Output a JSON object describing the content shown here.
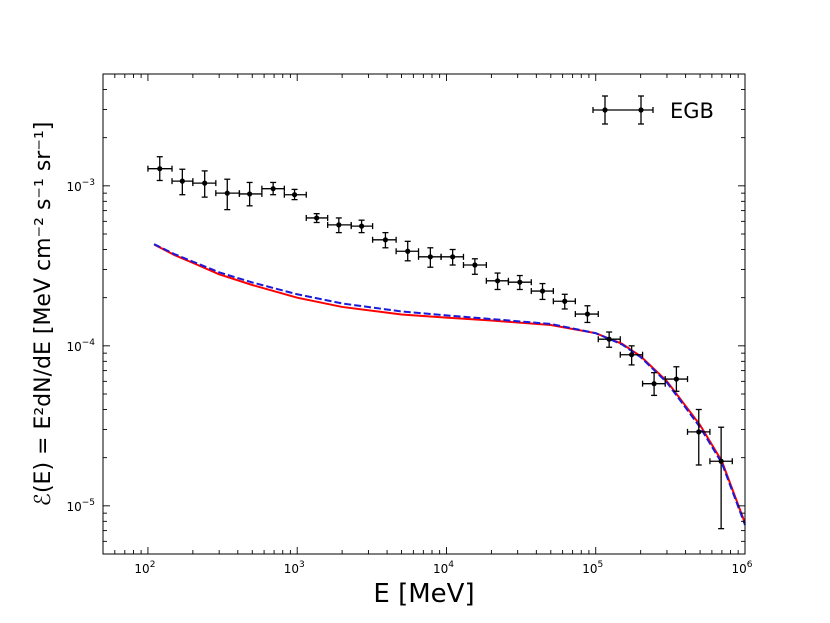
{
  "chart_data": {
    "type": "scatter",
    "title": "",
    "xlabel": "E [MeV]",
    "ylabel": "ℰ(E) = E²dN/dE [MeV cm⁻² s⁻¹ sr⁻¹]",
    "xscale": "log",
    "yscale": "log",
    "xlim": [
      50,
      1000000
    ],
    "ylim": [
      5e-06,
      0.005
    ],
    "grid": false,
    "legend_position": "top-right",
    "x_ticks": [
      {
        "value": 100,
        "base": "10",
        "exp": "2"
      },
      {
        "value": 1000,
        "base": "10",
        "exp": "3"
      },
      {
        "value": 10000,
        "base": "10",
        "exp": "4"
      },
      {
        "value": 100000,
        "base": "10",
        "exp": "5"
      },
      {
        "value": 1000000,
        "base": "10",
        "exp": "6"
      }
    ],
    "y_ticks": [
      {
        "value": 1e-05,
        "base": "10",
        "exp": "−5"
      },
      {
        "value": 0.0001,
        "base": "10",
        "exp": "−4"
      },
      {
        "value": 0.001,
        "base": "10",
        "exp": "−3"
      }
    ],
    "series": [
      {
        "name": "EGB",
        "kind": "errorbar",
        "color": "#000000",
        "points": [
          {
            "x": 120,
            "y": 0.00128,
            "xlo": 100,
            "xhi": 145,
            "ylo": 0.00108,
            "yhi": 0.00152
          },
          {
            "x": 170,
            "y": 0.00107,
            "xlo": 145,
            "xhi": 200,
            "ylo": 0.00088,
            "yhi": 0.00127
          },
          {
            "x": 240,
            "y": 0.00104,
            "xlo": 200,
            "xhi": 285,
            "ylo": 0.00085,
            "yhi": 0.00124
          },
          {
            "x": 340,
            "y": 0.0009,
            "xlo": 285,
            "xhi": 410,
            "ylo": 0.00071,
            "yhi": 0.0011
          },
          {
            "x": 480,
            "y": 0.00089,
            "xlo": 410,
            "xhi": 580,
            "ylo": 0.00075,
            "yhi": 0.00105
          },
          {
            "x": 690,
            "y": 0.00096,
            "xlo": 580,
            "xhi": 820,
            "ylo": 0.00088,
            "yhi": 0.00105
          },
          {
            "x": 960,
            "y": 0.00088,
            "xlo": 820,
            "xhi": 1150,
            "ylo": 0.00082,
            "yhi": 0.00095
          },
          {
            "x": 1350,
            "y": 0.00063,
            "xlo": 1150,
            "xhi": 1600,
            "ylo": 0.00059,
            "yhi": 0.00067
          },
          {
            "x": 1900,
            "y": 0.00057,
            "xlo": 1600,
            "xhi": 2300,
            "ylo": 0.00051,
            "yhi": 0.00063
          },
          {
            "x": 2700,
            "y": 0.00056,
            "xlo": 2300,
            "xhi": 3200,
            "ylo": 0.00051,
            "yhi": 0.00061
          },
          {
            "x": 3900,
            "y": 0.00046,
            "xlo": 3200,
            "xhi": 4600,
            "ylo": 0.00041,
            "yhi": 0.00051
          },
          {
            "x": 5500,
            "y": 0.00039,
            "xlo": 4600,
            "xhi": 6500,
            "ylo": 0.00034,
            "yhi": 0.00045
          },
          {
            "x": 7800,
            "y": 0.00036,
            "xlo": 6500,
            "xhi": 9200,
            "ylo": 0.00031,
            "yhi": 0.00041
          },
          {
            "x": 11000,
            "y": 0.00036,
            "xlo": 9200,
            "xhi": 13000,
            "ylo": 0.00032,
            "yhi": 0.0004
          },
          {
            "x": 15500,
            "y": 0.00032,
            "xlo": 13000,
            "xhi": 18500,
            "ylo": 0.00028,
            "yhi": 0.00035
          },
          {
            "x": 22000,
            "y": 0.000255,
            "xlo": 18500,
            "xhi": 26000,
            "ylo": 0.000225,
            "yhi": 0.000285
          },
          {
            "x": 31000,
            "y": 0.00025,
            "xlo": 26000,
            "xhi": 37000,
            "ylo": 0.000225,
            "yhi": 0.000275
          },
          {
            "x": 44000,
            "y": 0.00022,
            "xlo": 37000,
            "xhi": 52000,
            "ylo": 0.000195,
            "yhi": 0.000245
          },
          {
            "x": 62000,
            "y": 0.00019,
            "xlo": 52000,
            "xhi": 73000,
            "ylo": 0.00017,
            "yhi": 0.00021
          },
          {
            "x": 88000,
            "y": 0.000158,
            "xlo": 73000,
            "xhi": 104000,
            "ylo": 0.00014,
            "yhi": 0.000178
          },
          {
            "x": 123000,
            "y": 0.00011,
            "xlo": 104000,
            "xhi": 146000,
            "ylo": 9.8e-05,
            "yhi": 0.000122
          },
          {
            "x": 174000,
            "y": 8.8e-05,
            "xlo": 146000,
            "xhi": 206000,
            "ylo": 7.6e-05,
            "yhi": 0.0001
          },
          {
            "x": 246000,
            "y": 5.8e-05,
            "xlo": 206000,
            "xhi": 292000,
            "ylo": 4.9e-05,
            "yhi": 6.8e-05
          },
          {
            "x": 347000,
            "y": 6.2e-05,
            "xlo": 292000,
            "xhi": 412000,
            "ylo": 5.2e-05,
            "yhi": 7.4e-05
          },
          {
            "x": 490000,
            "y": 2.9e-05,
            "xlo": 412000,
            "xhi": 582000,
            "ylo": 1.8e-05,
            "yhi": 4e-05
          },
          {
            "x": 692000,
            "y": 1.9e-05,
            "xlo": 582000,
            "xhi": 822000,
            "ylo": 7.2e-06,
            "yhi": 3.1e-05
          }
        ]
      },
      {
        "name": "model (red)",
        "kind": "line",
        "color": "#ff0000",
        "dash": "solid",
        "x": [
          110,
          150,
          200,
          300,
          500,
          1000,
          2000,
          5000,
          10000,
          20000,
          50000,
          100000,
          150000,
          200000,
          300000,
          500000,
          700000,
          1000000
        ],
        "y": [
          0.00043,
          0.00037,
          0.00033,
          0.00028,
          0.00024,
          0.0002,
          0.000175,
          0.000157,
          0.00015,
          0.000144,
          0.000135,
          0.00012,
          0.000103,
          8.6e-05,
          6e-05,
          3.2e-05,
          1.9e-05,
          7.8e-06
        ]
      },
      {
        "name": "model (blue dashed)",
        "kind": "line",
        "color": "#1a1adb",
        "dash": "dashed",
        "x": [
          110,
          150,
          200,
          300,
          500,
          1000,
          2000,
          5000,
          10000,
          20000,
          50000,
          100000,
          150000,
          200000,
          300000,
          500000,
          700000,
          1000000
        ],
        "y": [
          0.000432,
          0.000375,
          0.000336,
          0.000288,
          0.000249,
          0.00021,
          0.000184,
          0.000164,
          0.000155,
          0.000147,
          0.000137,
          0.00012,
          0.000102,
          8.5e-05,
          5.9e-05,
          3.1e-05,
          1.85e-05,
          7.6e-06
        ]
      }
    ],
    "legend": [
      {
        "label": "EGB",
        "series": "EGB"
      }
    ]
  }
}
